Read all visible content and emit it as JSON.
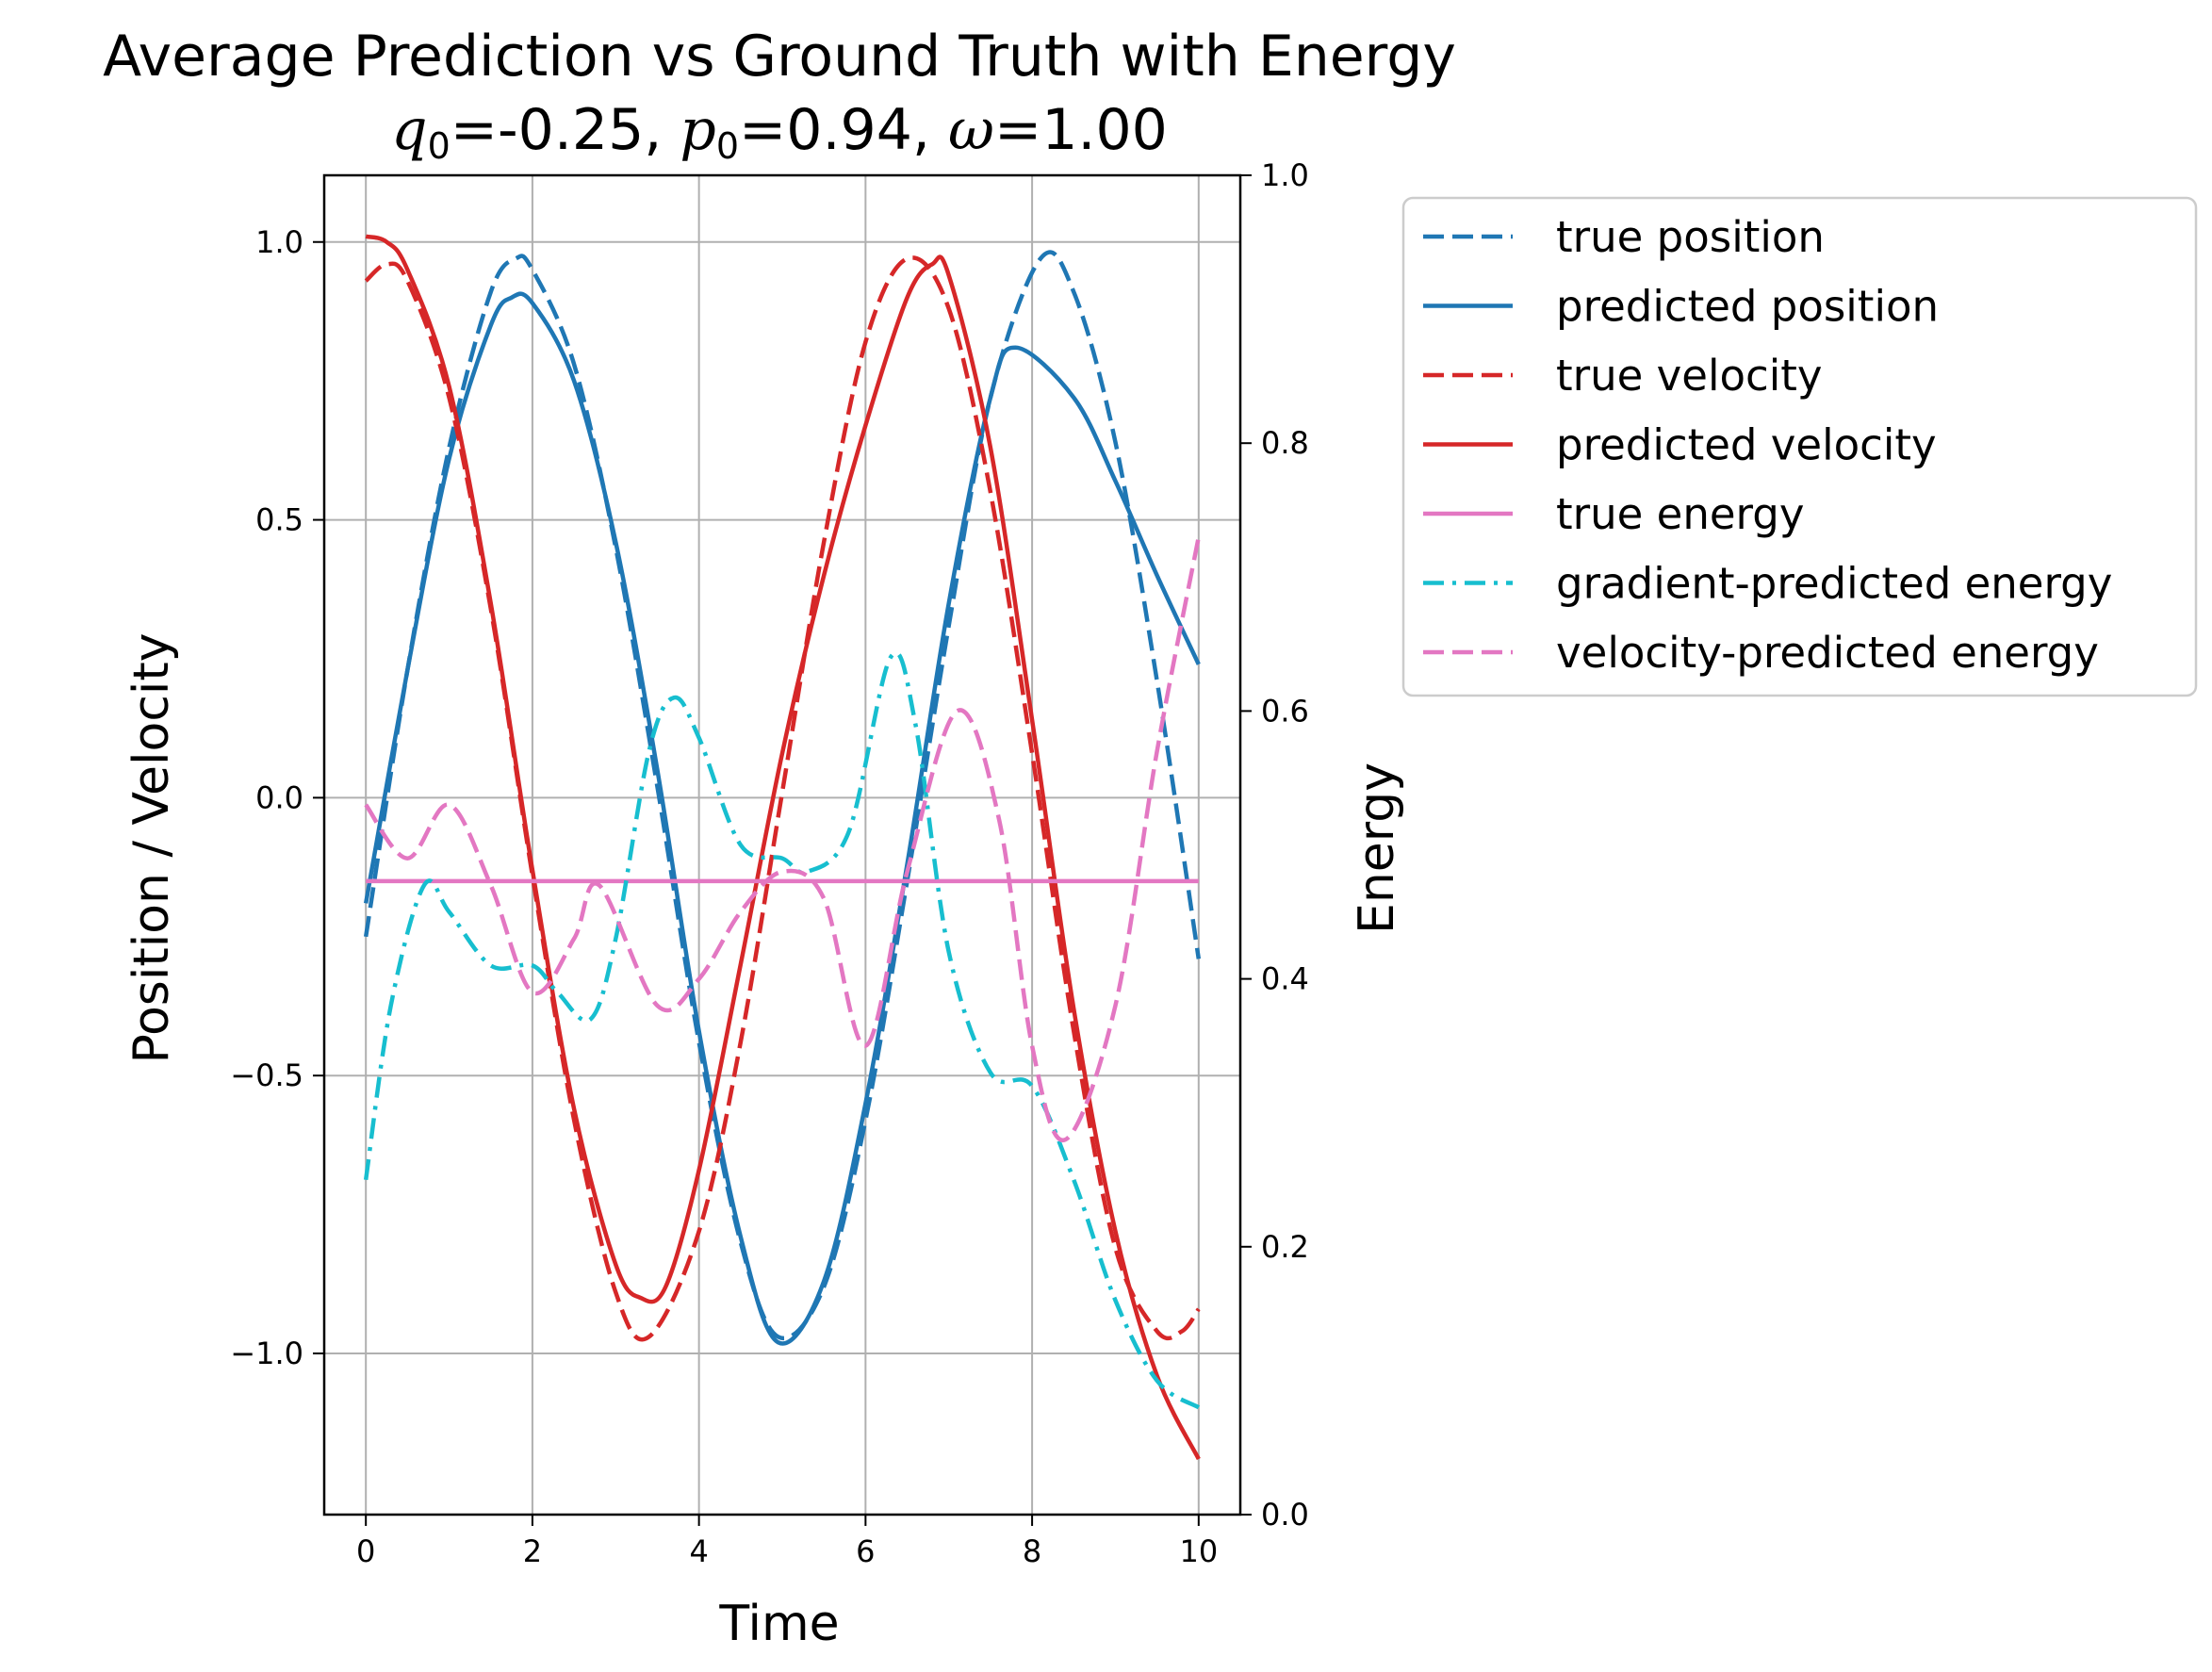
{
  "chart_data": {
    "type": "line",
    "title": "Average Prediction vs Ground Truth with Energy",
    "subtitle_parts": {
      "q_sym": "q",
      "q_sub": "0",
      "q_val": "=-0.25, ",
      "p_sym": "p",
      "p_sub": "0",
      "p_val": "=0.94, ",
      "w_sym": "ω",
      "w_val": "=1.00"
    },
    "xlabel": "Time",
    "ylabel_left": "Position / Velocity",
    "ylabel_right": "Energy",
    "xlim": [
      -0.5,
      10.5
    ],
    "ylim_left": [
      -1.29,
      1.12
    ],
    "ylim_right": [
      0.0,
      1.0
    ],
    "x_ticks": [
      0,
      2,
      4,
      6,
      8,
      10
    ],
    "x_tick_labels": [
      "0",
      "2",
      "4",
      "6",
      "8",
      "10"
    ],
    "y_left_ticks": [
      1.0,
      0.5,
      0.0,
      -0.5,
      -1.0
    ],
    "y_left_tick_labels": [
      "1.0",
      "0.5",
      "0.0",
      "−0.5",
      "−1.0"
    ],
    "y_right_ticks": [
      1.0,
      0.8,
      0.6,
      0.4,
      0.2,
      0.0
    ],
    "y_right_tick_labels": [
      "1.0",
      "0.8",
      "0.6",
      "0.4",
      "0.2",
      "0.0"
    ],
    "grid": true,
    "legend_position": "outside-right",
    "series": [
      {
        "name": "true position",
        "axis": "left",
        "color": "#1f77b4",
        "style": "dashed",
        "x": [
          0,
          0.5,
          1,
          1.5,
          1.8,
          2,
          2.5,
          3,
          3.5,
          4,
          4.5,
          4.95,
          5.5,
          6,
          6.5,
          7,
          7.5,
          8.1,
          8.5,
          9,
          9.5,
          10
        ],
        "y": [
          -0.25,
          0.23,
          0.63,
          0.91,
          0.97,
          0.95,
          0.78,
          0.45,
          0.02,
          -0.44,
          -0.8,
          -0.97,
          -0.88,
          -0.58,
          -0.15,
          0.31,
          0.72,
          0.97,
          0.91,
          0.64,
          0.21,
          -0.29
        ]
      },
      {
        "name": "predicted position",
        "axis": "left",
        "color": "#1f77b4",
        "style": "solid",
        "x": [
          0,
          0.5,
          1,
          1.5,
          1.75,
          2,
          2.5,
          3,
          3.5,
          4,
          4.5,
          4.95,
          5.5,
          6,
          6.5,
          7,
          7.5,
          7.8,
          8.5,
          9,
          9.5,
          10
        ],
        "y": [
          -0.19,
          0.23,
          0.61,
          0.85,
          0.9,
          0.89,
          0.75,
          0.46,
          0.05,
          -0.42,
          -0.79,
          -0.98,
          -0.87,
          -0.55,
          -0.12,
          0.35,
          0.72,
          0.81,
          0.72,
          0.57,
          0.4,
          0.24
        ]
      },
      {
        "name": "true velocity",
        "axis": "left",
        "color": "#d62728",
        "style": "dashed",
        "x": [
          0,
          0.25,
          0.5,
          1,
          1.5,
          2,
          2.5,
          3,
          3.4,
          4,
          4.5,
          5,
          5.5,
          6,
          6.5,
          7,
          7.5,
          8,
          8.5,
          9,
          9.5,
          9.8,
          10
        ],
        "y": [
          0.93,
          0.96,
          0.93,
          0.72,
          0.34,
          -0.14,
          -0.58,
          -0.89,
          -0.97,
          -0.78,
          -0.44,
          0.01,
          0.46,
          0.82,
          0.97,
          0.88,
          0.55,
          0.08,
          -0.42,
          -0.81,
          -0.96,
          -0.96,
          -0.92
        ]
      },
      {
        "name": "predicted velocity",
        "axis": "left",
        "color": "#d62728",
        "style": "solid",
        "x": [
          0,
          0.25,
          0.5,
          1,
          1.5,
          2,
          2.5,
          3,
          3.3,
          3.6,
          4,
          4.5,
          5,
          5.5,
          6,
          6.5,
          6.8,
          7,
          7.5,
          8,
          8.5,
          9,
          9.5,
          10
        ],
        "y": [
          1.01,
          1.0,
          0.95,
          0.74,
          0.35,
          -0.13,
          -0.56,
          -0.84,
          -0.9,
          -0.88,
          -0.67,
          -0.3,
          0.08,
          0.4,
          0.67,
          0.9,
          0.96,
          0.94,
          0.63,
          0.14,
          -0.38,
          -0.78,
          -1.04,
          -1.19
        ]
      },
      {
        "name": "true energy",
        "axis": "right",
        "color": "#e377c2",
        "style": "solid",
        "x": [
          0,
          10
        ],
        "y": [
          0.473,
          0.473
        ]
      },
      {
        "name": "gradient-predicted energy",
        "axis": "right",
        "color": "#17becf",
        "style": "dashdot",
        "x": [
          0,
          0.3,
          0.7,
          1,
          1.5,
          2,
          2.3,
          2.7,
          3,
          3.4,
          3.7,
          4,
          4.5,
          5,
          5.3,
          5.8,
          6.3,
          6.6,
          7,
          7.5,
          8,
          8.5,
          9,
          9.5,
          10
        ],
        "y": [
          0.25,
          0.38,
          0.47,
          0.45,
          0.41,
          0.41,
          0.39,
          0.37,
          0.43,
          0.57,
          0.61,
          0.58,
          0.5,
          0.49,
          0.48,
          0.51,
          0.64,
          0.59,
          0.42,
          0.33,
          0.32,
          0.25,
          0.16,
          0.1,
          0.08
        ]
      },
      {
        "name": "velocity-predicted energy",
        "axis": "right",
        "color": "#e377c2",
        "style": "dashed",
        "x": [
          0,
          0.5,
          1,
          1.5,
          2,
          2.5,
          2.8,
          3.5,
          4,
          4.5,
          5,
          5.5,
          6,
          6.5,
          7.1,
          7.6,
          8,
          8.4,
          9,
          9.5,
          10
        ],
        "y": [
          0.53,
          0.49,
          0.53,
          0.47,
          0.39,
          0.43,
          0.47,
          0.38,
          0.4,
          0.45,
          0.48,
          0.46,
          0.35,
          0.48,
          0.6,
          0.52,
          0.35,
          0.28,
          0.38,
          0.57,
          0.73
        ]
      }
    ]
  }
}
